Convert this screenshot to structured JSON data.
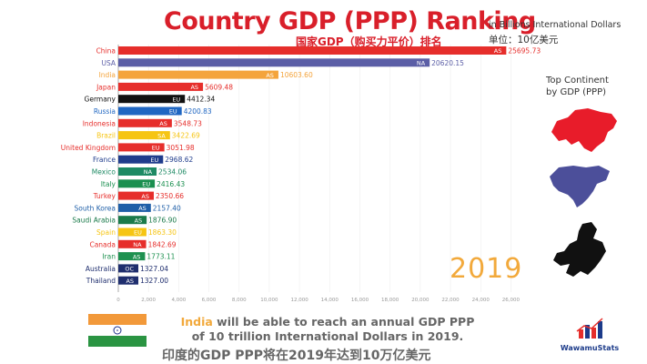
{
  "header": {
    "title": "Country GDP (PPP) Ranking",
    "title_cn": "国家GDP（购买力平价）排名",
    "unit_en": "in Billions International Dollars",
    "unit_cn": "单位：10亿美元"
  },
  "side": {
    "continent_label": "Top Continent by GDP (PPP)",
    "year": "2019"
  },
  "footer": {
    "highlight": "India",
    "text": " will be able to reach an annual GDP PPP of 10 trillion International Dollars in 2019.",
    "text_cn": "印度的GDP PPP将在2019年达到10万亿美元",
    "logo": "WawamuStats"
  },
  "chart_data": {
    "type": "bar",
    "orientation": "horizontal",
    "categories": [
      "China",
      "USA",
      "India",
      "Japan",
      "Germany",
      "Russia",
      "Indonesia",
      "Brazil",
      "United Kingdom",
      "France",
      "Mexico",
      "Italy",
      "Turkey",
      "South Korea",
      "Saudi Arabia",
      "Spain",
      "Canada",
      "Iran",
      "Australia",
      "Thailand"
    ],
    "values": [
      25695.73,
      20620.15,
      10603.6,
      5609.48,
      4412.34,
      4200.83,
      3548.73,
      3422.69,
      3051.98,
      2968.62,
      2534.06,
      2416.43,
      2350.66,
      2157.4,
      1876.9,
      1863.3,
      1842.69,
      1773.11,
      1327.04,
      1327.0
    ],
    "value_labels": [
      "25695.73",
      "20620.15",
      "10603.60",
      "5609.48",
      "4412.34",
      "4200.83",
      "3548.73",
      "3422.69",
      "3051.98",
      "2968.62",
      "2534.06",
      "2416.43",
      "2350.66",
      "2157.40",
      "1876.90",
      "1863.30",
      "1842.69",
      "1773.11",
      "1327.04",
      "1327.00"
    ],
    "continents": [
      "AS",
      "NA",
      "AS",
      "AS",
      "EU",
      "EU",
      "AS",
      "SA",
      "EU",
      "EU",
      "NA",
      "EU",
      "AS",
      "AS",
      "AS",
      "EU",
      "NA",
      "AS",
      "OC",
      "AS"
    ],
    "colors": [
      "#e62e2b",
      "#5b5ea6",
      "#f4a43c",
      "#e62e2b",
      "#111111",
      "#1f66c2",
      "#e62e2b",
      "#f6c513",
      "#e62e2b",
      "#1f3c8c",
      "#1e8a64",
      "#1a8f4f",
      "#e62e2b",
      "#1f5fa8",
      "#1a7a4a",
      "#f6c513",
      "#e62e2b",
      "#1e9150",
      "#1f2e6e",
      "#1f2e6e"
    ],
    "xlim": [
      0,
      27000
    ],
    "x_ticks": [
      0,
      2000,
      4000,
      6000,
      8000,
      10000,
      12000,
      14000,
      16000,
      18000,
      20000,
      22000,
      24000,
      26000
    ],
    "x_tick_labels": [
      "0",
      "2,000",
      "4,000",
      "6,000",
      "8,000",
      "10,000",
      "12,000",
      "14,000",
      "16,000",
      "18,000",
      "20,000",
      "22,000",
      "24,000",
      "26,000"
    ]
  }
}
